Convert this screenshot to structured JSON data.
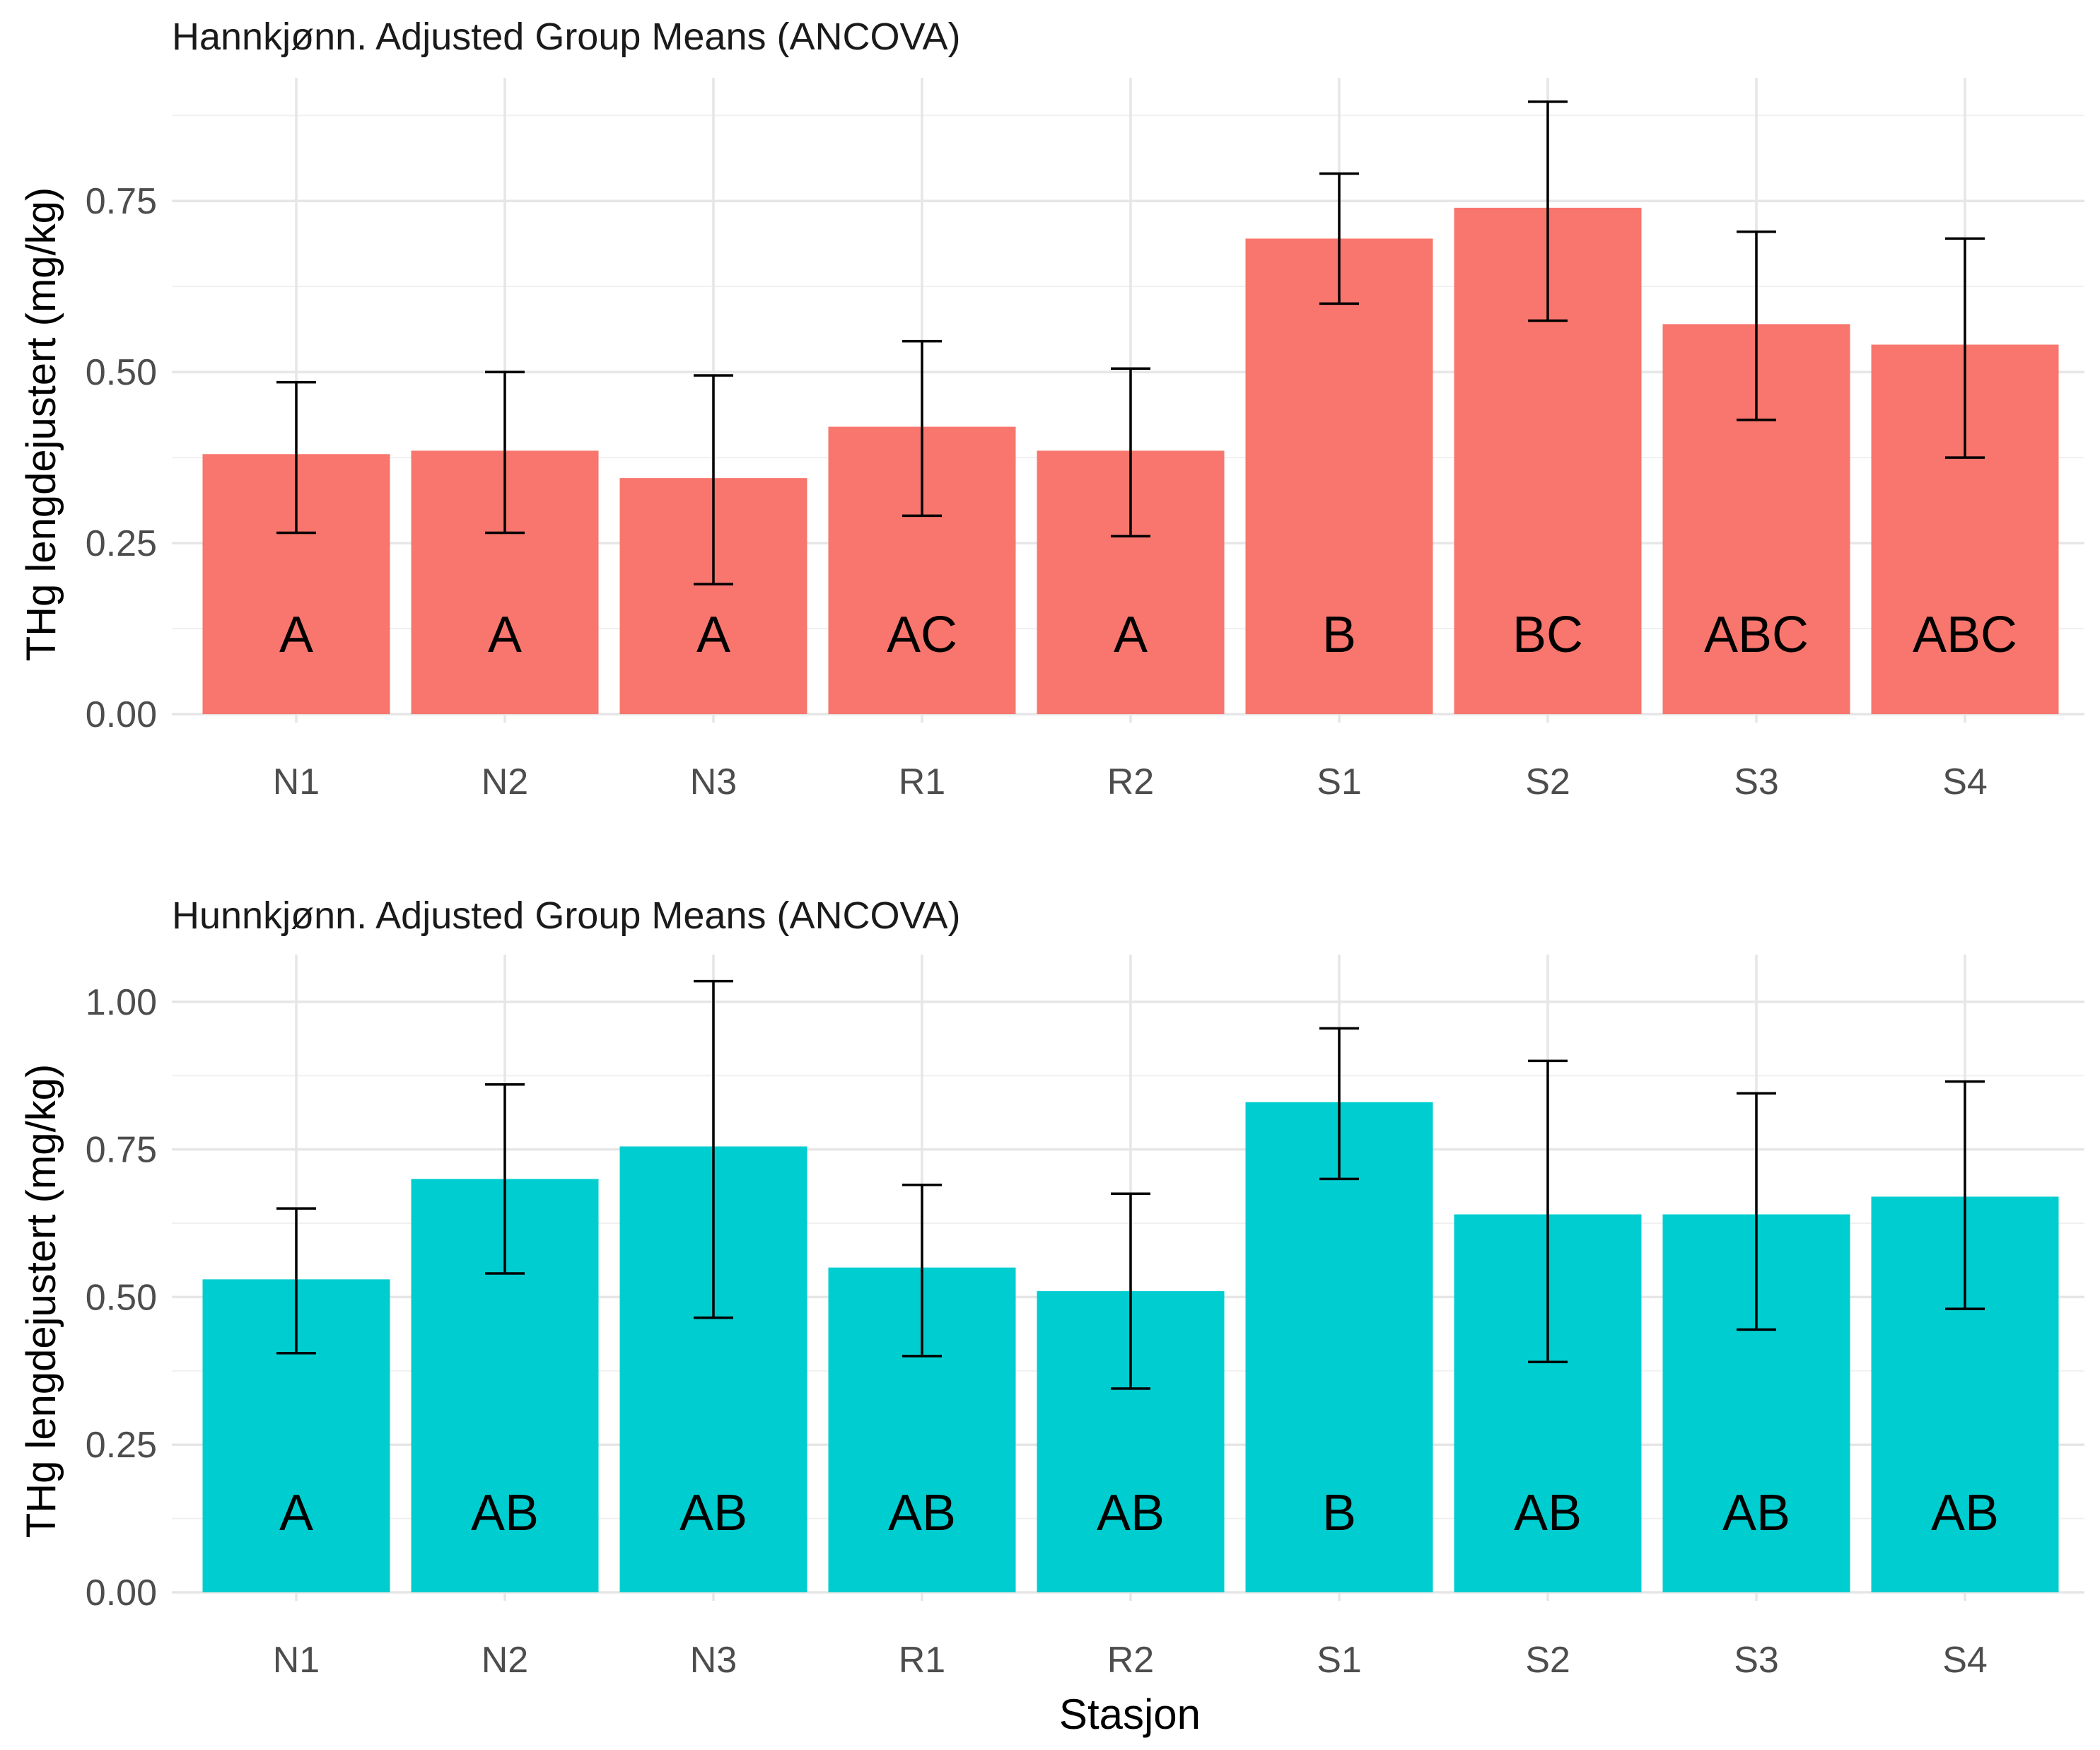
{
  "chart_data": [
    {
      "type": "bar",
      "title": "Hannkjønn. Adjusted Group Means (ANCOVA)",
      "xlabel": "",
      "ylabel": "THg lengdejustert (mg/kg)",
      "ylim": [
        0,
        0.93
      ],
      "yticks": [
        0,
        0.25,
        0.5,
        0.75
      ],
      "ytick_labels": [
        "0.00",
        "0.25",
        "0.50",
        "0.75"
      ],
      "categories": [
        "N1",
        "N2",
        "N3",
        "R1",
        "R2",
        "S1",
        "S2",
        "S3",
        "S4"
      ],
      "values": [
        0.38,
        0.385,
        0.345,
        0.42,
        0.385,
        0.695,
        0.74,
        0.57,
        0.54
      ],
      "error_low": [
        0.265,
        0.265,
        0.19,
        0.29,
        0.26,
        0.6,
        0.575,
        0.43,
        0.375
      ],
      "error_high": [
        0.485,
        0.5,
        0.495,
        0.545,
        0.505,
        0.79,
        0.895,
        0.705,
        0.695
      ],
      "letters": [
        "A",
        "A",
        "A",
        "AC",
        "A",
        "B",
        "BC",
        "ABC",
        "ABC"
      ],
      "bar_color": "#F8766D",
      "grid": true
    },
    {
      "type": "bar",
      "title": "Hunnkjønn. Adjusted Group Means (ANCOVA)",
      "xlabel": "Stasjon",
      "ylabel": "THg lengdejustert (mg/kg)",
      "ylim": [
        0,
        1.08
      ],
      "yticks": [
        0,
        0.25,
        0.5,
        0.75,
        1.0
      ],
      "ytick_labels": [
        "0.00",
        "0.25",
        "0.50",
        "0.75",
        "1.00"
      ],
      "categories": [
        "N1",
        "N2",
        "N3",
        "R1",
        "R2",
        "S1",
        "S2",
        "S3",
        "S4"
      ],
      "values": [
        0.53,
        0.7,
        0.755,
        0.55,
        0.51,
        0.83,
        0.64,
        0.64,
        0.67
      ],
      "error_low": [
        0.405,
        0.54,
        0.465,
        0.4,
        0.345,
        0.7,
        0.39,
        0.445,
        0.48
      ],
      "error_high": [
        0.65,
        0.86,
        1.035,
        0.69,
        0.675,
        0.955,
        0.9,
        0.845,
        0.865
      ],
      "letters": [
        "A",
        "AB",
        "AB",
        "AB",
        "AB",
        "B",
        "AB",
        "AB",
        "AB"
      ],
      "bar_color": "#00CDD0",
      "grid": true
    }
  ]
}
